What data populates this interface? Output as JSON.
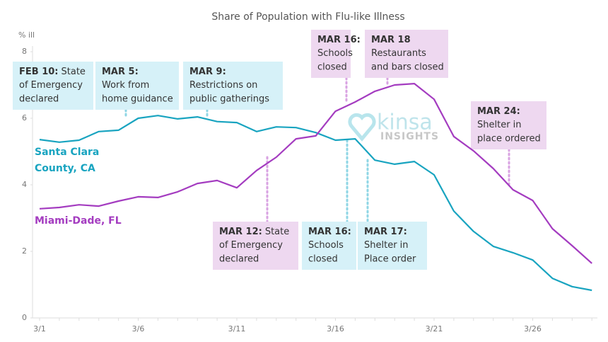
{
  "chart_data": {
    "type": "line",
    "title": "Share of Population with Flu-like Illness",
    "y_label": "% ill",
    "categories": [
      "3/1",
      null,
      null,
      null,
      null,
      "3/6",
      null,
      null,
      null,
      null,
      "3/11",
      null,
      null,
      null,
      null,
      "3/16",
      null,
      null,
      null,
      null,
      "3/21",
      null,
      null,
      null,
      null,
      "3/26",
      null,
      null,
      null
    ],
    "ylim": [
      0,
      8
    ],
    "yticks": [
      0,
      2,
      4,
      6,
      8
    ],
    "series": [
      {
        "name": "Santa Clara County, CA",
        "color": "#19a4c0",
        "values": [
          5.36,
          5.28,
          5.34,
          5.6,
          5.64,
          6.0,
          6.08,
          5.98,
          6.04,
          5.9,
          5.87,
          5.6,
          5.74,
          5.72,
          5.57,
          5.34,
          5.38,
          4.74,
          4.62,
          4.7,
          4.3,
          3.21,
          2.6,
          2.15,
          1.96,
          1.74,
          1.19,
          0.94,
          0.83
        ]
      },
      {
        "name": "Miami-Dade, FL",
        "color": "#a43cc0",
        "values": [
          3.28,
          3.32,
          3.4,
          3.36,
          3.51,
          3.64,
          3.62,
          3.79,
          4.04,
          4.13,
          3.91,
          4.43,
          4.83,
          5.38,
          5.47,
          6.21,
          6.49,
          6.81,
          7.0,
          7.04,
          6.57,
          5.45,
          5.02,
          4.49,
          3.85,
          3.53,
          2.68,
          2.17,
          1.64
        ]
      }
    ],
    "annotations": [
      {
        "label": "FEB 10:",
        "lines": [
          "State",
          "of Emergency",
          "declared"
        ],
        "series": 0
      },
      {
        "label": "MAR 5:",
        "lines": [
          "Work from",
          "home guidance"
        ],
        "series": 0
      },
      {
        "label": "MAR 9:",
        "lines": [
          "Restrictions on",
          "public gatherings"
        ],
        "series": 0
      },
      {
        "label": "MAR 16:",
        "lines": [
          "Schools",
          "closed"
        ],
        "series": 1
      },
      {
        "label": "MAR 18",
        "lines": [
          "Restaurants",
          "and bars closed"
        ],
        "series": 1
      },
      {
        "label": "MAR 24:",
        "lines": [
          "Shelter in",
          "place ordered"
        ],
        "series": 1
      },
      {
        "label": "MAR 12:",
        "lines": [
          "State",
          "of Emergency",
          "declared"
        ],
        "series": 1
      },
      {
        "label": "MAR 16:",
        "lines": [
          "Schools",
          "closed"
        ],
        "series": 0
      },
      {
        "label": "MAR 17:",
        "lines": [
          "Shelter in",
          "Place order"
        ],
        "series": 0
      }
    ],
    "watermark": {
      "brand": "kinsa",
      "sub": "INSIGHTS"
    }
  }
}
